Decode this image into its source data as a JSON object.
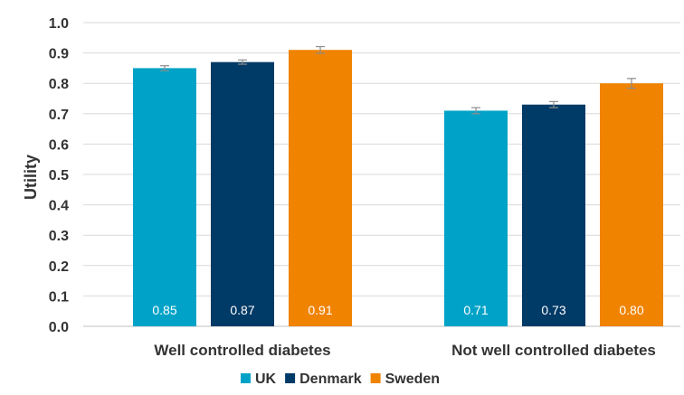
{
  "chart_data": {
    "type": "bar",
    "categories": [
      "Well controlled diabetes",
      "Not well controlled diabetes"
    ],
    "series": [
      {
        "name": "UK",
        "color": "#00A3C7",
        "values": [
          0.85,
          0.71
        ],
        "error": [
          0.008,
          0.01
        ],
        "labels": [
          "0.85",
          "0.71"
        ]
      },
      {
        "name": "Denmark",
        "color": "#003A66",
        "values": [
          0.87,
          0.73
        ],
        "error": [
          0.007,
          0.01
        ],
        "labels": [
          "0.87",
          "0.73"
        ]
      },
      {
        "name": "Sweden",
        "color": "#F08300",
        "values": [
          0.91,
          0.8
        ],
        "error": [
          0.011,
          0.016
        ],
        "labels": [
          "0.91",
          "0.80"
        ]
      }
    ],
    "ylabel": "Utility",
    "ylim": [
      0,
      1.0
    ],
    "yticks": [
      "0.0",
      "0.1",
      "0.2",
      "0.3",
      "0.4",
      "0.5",
      "0.6",
      "0.7",
      "0.8",
      "0.9",
      "1.0"
    ],
    "grid": true,
    "legend_position": "bottom"
  }
}
